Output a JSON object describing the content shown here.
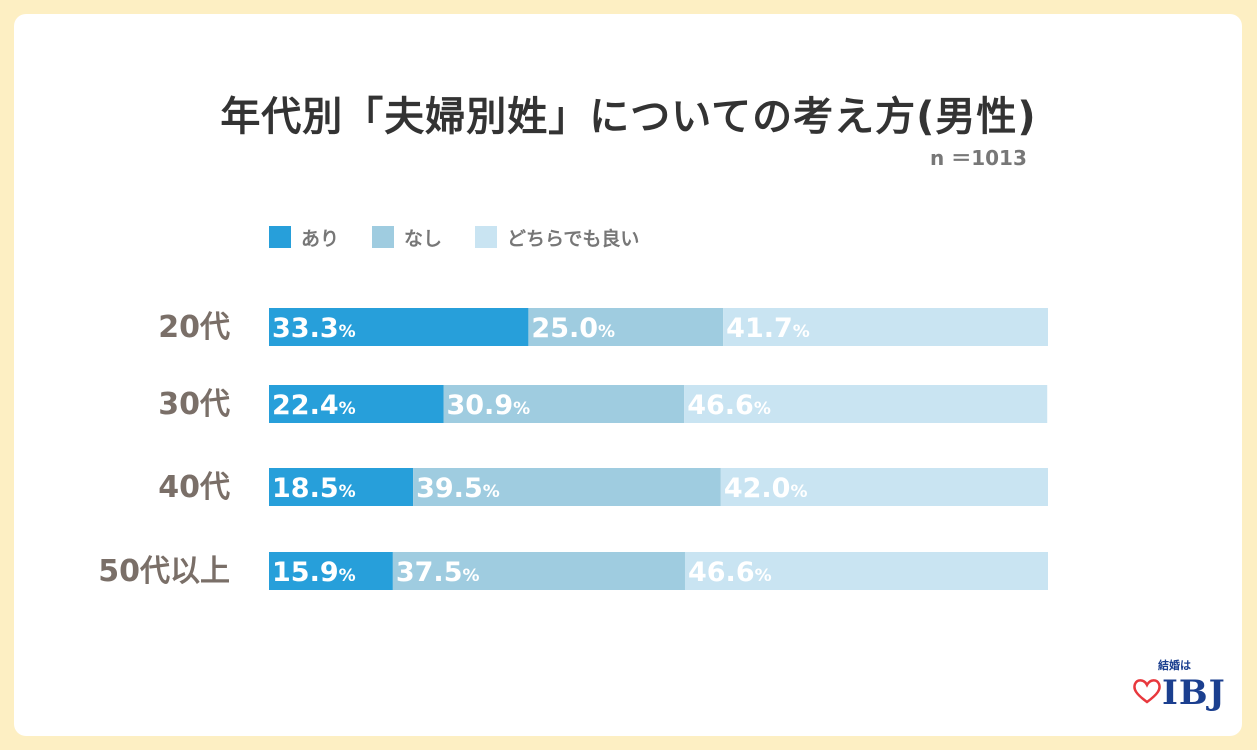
{
  "chart_data": {
    "type": "bar",
    "orientation": "horizontal",
    "stacked": true,
    "title": "年代別「夫婦別姓」についての考え方(男性)",
    "sample_size": "n ＝1013",
    "categories": [
      "20代",
      "30代",
      "40代",
      "50代以上"
    ],
    "series": [
      {
        "name": "あり",
        "color": "#279fda",
        "values": [
          33.3,
          22.4,
          18.5,
          15.9
        ]
      },
      {
        "name": "なし",
        "color": "#9fcce0",
        "values": [
          25.0,
          30.9,
          39.5,
          37.5
        ]
      },
      {
        "name": "どちらでも良い",
        "color": "#c9e4f2",
        "values": [
          41.7,
          46.6,
          42.0,
          46.6
        ]
      }
    ],
    "value_suffix": "%",
    "xlim": [
      0,
      100
    ],
    "xlabel": "",
    "ylabel": "",
    "legend": "top-left"
  },
  "logo": {
    "tagline": "結婚は",
    "brand": "IBJ"
  }
}
